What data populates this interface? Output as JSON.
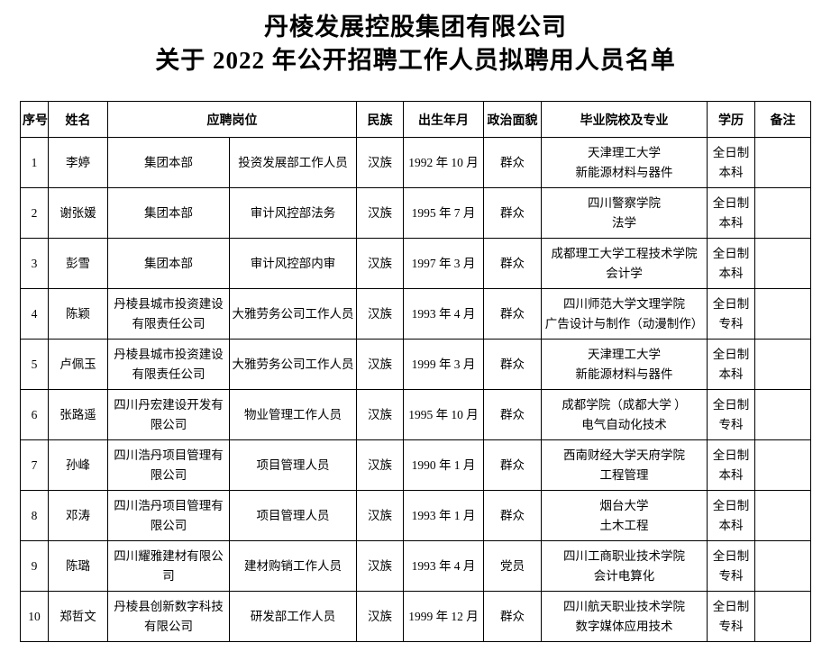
{
  "page": {
    "title_line1": "丹棱发展控股集团有限公司",
    "title_line2": "关于 2022 年公开招聘工作人员拟聘用人员名单"
  },
  "table": {
    "header": [
      {
        "label": "序号",
        "colspan": 1
      },
      {
        "label": "姓名",
        "colspan": 1
      },
      {
        "label": "应聘岗位",
        "colspan": 2
      },
      {
        "label": "民族",
        "colspan": 1
      },
      {
        "label": "出生年月",
        "colspan": 1
      },
      {
        "label": "政治面貌",
        "colspan": 1
      },
      {
        "label": "毕业院校及专业",
        "colspan": 1
      },
      {
        "label": "学历",
        "colspan": 1
      },
      {
        "label": "备注",
        "colspan": 1
      }
    ],
    "row_keys": [
      "no",
      "name",
      "company",
      "position",
      "ethnicity",
      "birth",
      "political",
      "school",
      "degree",
      "remark"
    ],
    "rows": [
      {
        "no": "1",
        "name": "李婷",
        "company": "集团本部",
        "position": "投资发展部工作人员",
        "ethnicity": "汉族",
        "birth": "1992 年 10 月",
        "political": "群众",
        "school": "天津理工大学\n新能源材料与器件",
        "degree": "全日制\n本科",
        "remark": ""
      },
      {
        "no": "2",
        "name": "谢张媛",
        "company": "集团本部",
        "position": "审计风控部法务",
        "ethnicity": "汉族",
        "birth": "1995 年 7 月",
        "political": "群众",
        "school": "四川警察学院\n法学",
        "degree": "全日制\n本科",
        "remark": ""
      },
      {
        "no": "3",
        "name": "彭雪",
        "company": "集团本部",
        "position": "审计风控部内审",
        "ethnicity": "汉族",
        "birth": "1997 年 3 月",
        "political": "群众",
        "school": "成都理工大学工程技术学院\n会计学",
        "degree": "全日制\n本科",
        "remark": ""
      },
      {
        "no": "4",
        "name": "陈颖",
        "company": "丹棱县城市投资建设有限责任公司",
        "position": "大雅劳务公司工作人员",
        "ethnicity": "汉族",
        "birth": "1993 年 4 月",
        "political": "群众",
        "school": "四川师范大学文理学院\n广告设计与制作（动漫制作）",
        "degree": "全日制\n专科",
        "remark": ""
      },
      {
        "no": "5",
        "name": "卢佩玉",
        "company": "丹棱县城市投资建设有限责任公司",
        "position": "大雅劳务公司工作人员",
        "ethnicity": "汉族",
        "birth": "1999 年 3 月",
        "political": "群众",
        "school": "天津理工大学\n新能源材料与器件",
        "degree": "全日制\n本科",
        "remark": ""
      },
      {
        "no": "6",
        "name": "张路遥",
        "company": "四川丹宏建设开发有限公司",
        "position": "物业管理工作人员",
        "ethnicity": "汉族",
        "birth": "1995 年 10 月",
        "political": "群众",
        "school": "成都学院（成都大学 ）\n电气自动化技术",
        "degree": "全日制\n专科",
        "remark": ""
      },
      {
        "no": "7",
        "name": "孙峰",
        "company": "四川浩丹项目管理有限公司",
        "position": "项目管理人员",
        "ethnicity": "汉族",
        "birth": "1990 年 1 月",
        "political": "群众",
        "school": "西南财经大学天府学院\n工程管理",
        "degree": "全日制\n本科",
        "remark": ""
      },
      {
        "no": "8",
        "name": "邓涛",
        "company": "四川浩丹项目管理有限公司",
        "position": "项目管理人员",
        "ethnicity": "汉族",
        "birth": "1993 年 1 月",
        "political": "群众",
        "school": "烟台大学\n土木工程",
        "degree": "全日制\n本科",
        "remark": ""
      },
      {
        "no": "9",
        "name": "陈璐",
        "company": "四川耀雅建材有限公司",
        "position": "建材购销工作人员",
        "ethnicity": "汉族",
        "birth": "1993 年 4 月",
        "political": "党员",
        "school": "四川工商职业技术学院\n会计电算化",
        "degree": "全日制\n专科",
        "remark": ""
      },
      {
        "no": "10",
        "name": "郑哲文",
        "company": "丹棱县创新数字科技有限公司",
        "position": "研发部工作人员",
        "ethnicity": "汉族",
        "birth": "1999 年 12 月",
        "political": "群众",
        "school": "四川航天职业技术学院\n数字媒体应用技术",
        "degree": "全日制\n专科",
        "remark": ""
      }
    ]
  }
}
